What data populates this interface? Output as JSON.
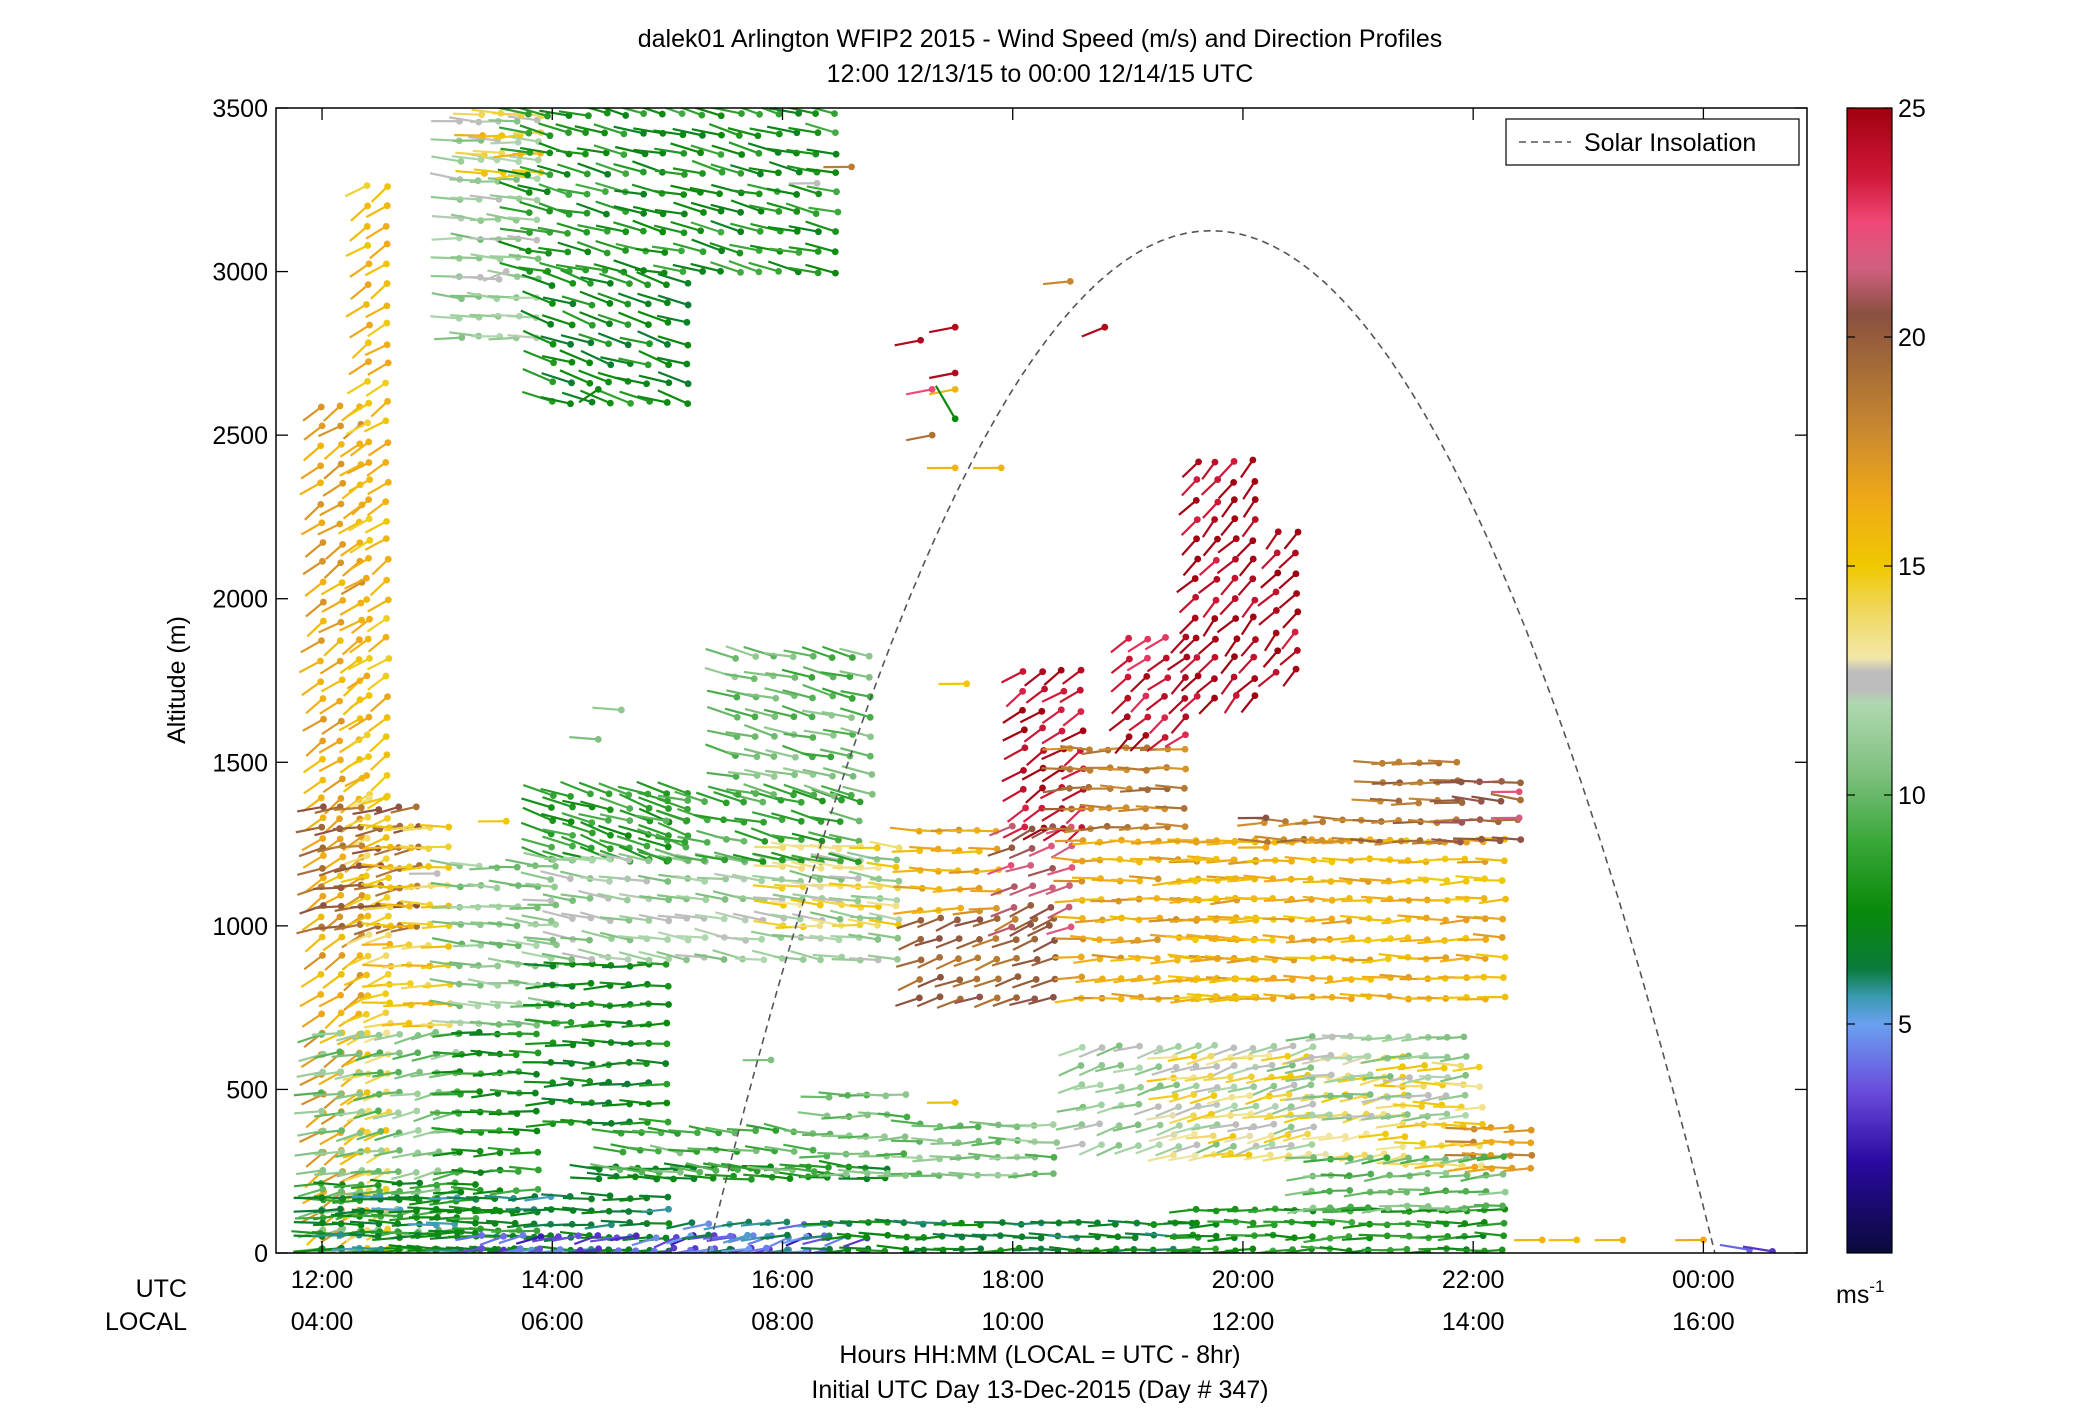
{
  "chart_data": {
    "type": "wind-barb-profile",
    "title": "dalek01 Arlington WFIP2 2015 - Wind Speed (m/s) and Direction Profiles",
    "subtitle": "12:00 12/13/15 to 00:00 12/14/15  UTC",
    "ylabel": "Altitude (m)",
    "xlabel": "Hours HH:MM  (LOCAL = UTC - 8hr)",
    "xlabel2": "Initial UTC Day 13-Dec-2015 (Day # 347)",
    "row_labels": {
      "utc": "UTC",
      "local": "LOCAL"
    },
    "xlim": [
      11.6,
      24.9
    ],
    "ylim": [
      0,
      3500
    ],
    "y_ticks": [
      "0",
      "500",
      "1000",
      "1500",
      "2000",
      "2500",
      "3000",
      "3500"
    ],
    "x_ticks_utc": [
      "12:00",
      "14:00",
      "16:00",
      "18:00",
      "20:00",
      "22:00",
      "00:00"
    ],
    "x_ticks_local": [
      "04:00",
      "06:00",
      "08:00",
      "10:00",
      "12:00",
      "14:00",
      "16:00"
    ],
    "legend": {
      "entries": [
        "Solar Insolation"
      ],
      "placement": "top-right"
    },
    "colorbar": {
      "range": [
        0,
        25
      ],
      "ticks": [
        "5",
        "10",
        "15",
        "20",
        "25"
      ],
      "unit_label": "ms",
      "unit_exp": "-1",
      "stops": [
        [
          0,
          "#0a0a3a"
        ],
        [
          2,
          "#2a0aa0"
        ],
        [
          3.5,
          "#6a4adc"
        ],
        [
          5,
          "#6aa0f0"
        ],
        [
          5.6,
          "#3a9ab0"
        ],
        [
          6.2,
          "#0a7a3a"
        ],
        [
          7.5,
          "#0a8a0a"
        ],
        [
          9,
          "#3aa83a"
        ],
        [
          10.5,
          "#80c080"
        ],
        [
          12,
          "#b0d8b0"
        ],
        [
          12.3,
          "#bdbdbd"
        ],
        [
          12.7,
          "#bdbdbd"
        ],
        [
          13,
          "#f2e8a8"
        ],
        [
          14,
          "#f0d860"
        ],
        [
          15,
          "#f0c800"
        ],
        [
          16.5,
          "#f0a818"
        ],
        [
          18,
          "#c88830"
        ],
        [
          19.5,
          "#a06838"
        ],
        [
          20.5,
          "#8a5040"
        ],
        [
          21.5,
          "#d06080"
        ],
        [
          22.5,
          "#f04878"
        ],
        [
          23.5,
          "#d01838"
        ],
        [
          25,
          "#a00010"
        ]
      ]
    },
    "solar_insolation": {
      "peak_time_utc": 19.8,
      "peak_altitude": 3125,
      "start_utc": 15.35,
      "end_utc": 24.1
    },
    "regions": [
      {
        "t0": 12.0,
        "t1": 12.4,
        "z0": 10,
        "z1": 2600,
        "dz": 60,
        "speed": 16.5,
        "dir": 220
      },
      {
        "t0": 12.4,
        "t1": 12.7,
        "z0": 1400,
        "z1": 3300,
        "dz": 60,
        "speed": 15.5,
        "dir": 220
      },
      {
        "t0": 12.4,
        "t1": 12.7,
        "z0": 10,
        "z1": 1400,
        "dz": 60,
        "speed": 14.5,
        "dir": 230
      },
      {
        "t0": 12.0,
        "t1": 12.9,
        "z0": 1000,
        "z1": 1360,
        "dz": 60,
        "speed": 19.5,
        "dir": 240
      },
      {
        "t0": 12.0,
        "t1": 13.2,
        "z0": 10,
        "z1": 700,
        "dz": 60,
        "speed": 10.5,
        "dir": 240
      },
      {
        "t0": 12.6,
        "t1": 13.2,
        "z0": 700,
        "z1": 1300,
        "dz": 60,
        "speed": 15.0,
        "dir": 250
      },
      {
        "t0": 12.0,
        "t1": 13.4,
        "z0": 10,
        "z1": 250,
        "dz": 50,
        "speed": 8.0,
        "dir": 250
      },
      {
        "t0": 13.2,
        "t1": 14.1,
        "z0": 700,
        "z1": 1200,
        "dz": 60,
        "speed": 11.0,
        "dir": 255
      },
      {
        "t0": 13.2,
        "t1": 14.0,
        "z0": 10,
        "z1": 700,
        "dz": 60,
        "speed": 8.0,
        "dir": 250
      },
      {
        "t0": 13.2,
        "t1": 14.0,
        "z0": 2800,
        "z1": 3480,
        "dz": 60,
        "speed": 11.5,
        "dir": 255
      },
      {
        "t0": 13.4,
        "t1": 14.0,
        "z0": 3300,
        "z1": 3480,
        "dz": 60,
        "speed": 15.0,
        "dir": 250
      },
      {
        "t0": 13.8,
        "t1": 16.6,
        "z0": 3000,
        "z1": 3480,
        "dz": 60,
        "speed": 8.0,
        "dir": 265
      },
      {
        "t0": 14.0,
        "t1": 15.2,
        "z0": 2600,
        "z1": 3000,
        "dz": 60,
        "speed": 7.5,
        "dir": 270
      },
      {
        "t0": 14.0,
        "t1": 15.2,
        "z0": 1200,
        "z1": 1400,
        "dz": 40,
        "speed": 8.5,
        "dir": 270
      },
      {
        "t0": 14.0,
        "t1": 15.0,
        "z0": 400,
        "z1": 900,
        "dz": 60,
        "speed": 7.5,
        "dir": 250
      },
      {
        "t0": 14.4,
        "t1": 16.9,
        "z0": 230,
        "z1": 280,
        "dz": 30,
        "speed": 7.5,
        "dir": 255
      },
      {
        "t0": 14.6,
        "t1": 16.4,
        "z0": 250,
        "z1": 380,
        "dz": 60,
        "speed": 9.5,
        "dir": 260
      },
      {
        "t0": 14.0,
        "t1": 17.0,
        "z0": 900,
        "z1": 1200,
        "dz": 60,
        "speed": 11.5,
        "dir": 260
      },
      {
        "t0": 15.0,
        "t1": 16.8,
        "z0": 1200,
        "z1": 1420,
        "dz": 60,
        "speed": 9.0,
        "dir": 265
      },
      {
        "t0": 16.0,
        "t1": 17.0,
        "z0": 1000,
        "z1": 1240,
        "dz": 60,
        "speed": 14.0,
        "dir": 255
      },
      {
        "t0": 15.6,
        "t1": 16.9,
        "z0": 1400,
        "z1": 1820,
        "dz": 60,
        "speed": 10.0,
        "dir": 265
      },
      {
        "t0": 17.2,
        "t1": 18.4,
        "z0": 780,
        "z1": 1050,
        "dz": 60,
        "speed": 19.5,
        "dir": 230
      },
      {
        "t0": 17.2,
        "t1": 18.0,
        "z0": 1050,
        "z1": 1300,
        "dz": 60,
        "speed": 16.5,
        "dir": 250
      },
      {
        "t0": 18.0,
        "t1": 18.5,
        "z0": 1000,
        "z1": 1300,
        "dz": 60,
        "speed": 21.0,
        "dir": 230
      },
      {
        "t0": 18.1,
        "t1": 18.6,
        "z0": 1300,
        "z1": 1820,
        "dz": 60,
        "speed": 24.0,
        "dir": 220
      },
      {
        "t0": 18.5,
        "t1": 19.6,
        "z0": 1300,
        "z1": 1560,
        "dz": 60,
        "speed": 18.5,
        "dir": 250
      },
      {
        "t0": 19.0,
        "t1": 19.6,
        "z0": 1580,
        "z1": 1900,
        "dz": 60,
        "speed": 24.0,
        "dir": 215
      },
      {
        "t0": 18.6,
        "t1": 20.2,
        "z0": 780,
        "z1": 1260,
        "dz": 60,
        "speed": 16.5,
        "dir": 250
      },
      {
        "t0": 19.6,
        "t1": 22.4,
        "z0": 780,
        "z1": 1260,
        "dz": 60,
        "speed": 16.0,
        "dir": 250
      },
      {
        "t0": 20.2,
        "t1": 21.1,
        "z0": 1260,
        "z1": 1360,
        "dz": 60,
        "speed": 18.5,
        "dir": 250
      },
      {
        "t0": 21.2,
        "t1": 21.9,
        "z0": 1260,
        "z1": 1500,
        "dz": 60,
        "speed": 19.0,
        "dir": 250
      },
      {
        "t0": 21.9,
        "t1": 22.4,
        "z0": 1260,
        "z1": 1480,
        "dz": 60,
        "speed": 20.0,
        "dir": 255
      },
      {
        "t0": 19.6,
        "t1": 20.2,
        "z0": 1700,
        "z1": 2450,
        "dz": 60,
        "speed": 24.5,
        "dir": 210
      },
      {
        "t0": 20.3,
        "t1": 20.6,
        "z0": 1780,
        "z1": 2200,
        "dz": 60,
        "speed": 24.5,
        "dir": 210
      },
      {
        "t0": 18.6,
        "t1": 20.6,
        "z0": 330,
        "z1": 680,
        "dz": 60,
        "speed": 11.5,
        "dir": 235
      },
      {
        "t0": 19.4,
        "t1": 21.4,
        "z0": 300,
        "z1": 600,
        "dz": 60,
        "speed": 14.0,
        "dir": 240
      },
      {
        "t0": 20.6,
        "t1": 22.0,
        "z0": 420,
        "z1": 680,
        "dz": 60,
        "speed": 11.5,
        "dir": 245
      },
      {
        "t0": 21.4,
        "t1": 22.1,
        "z0": 270,
        "z1": 600,
        "dz": 60,
        "speed": 14.5,
        "dir": 250
      },
      {
        "t0": 22.0,
        "t1": 22.6,
        "z0": 260,
        "z1": 380,
        "dz": 40,
        "speed": 17.5,
        "dir": 250
      },
      {
        "t0": 17.2,
        "t1": 18.4,
        "z0": 240,
        "z1": 400,
        "dz": 50,
        "speed": 10.5,
        "dir": 250
      },
      {
        "t0": 16.4,
        "t1": 17.2,
        "z0": 240,
        "z1": 480,
        "dz": 60,
        "speed": 10.0,
        "dir": 250
      },
      {
        "t0": 12.0,
        "t1": 15.0,
        "z0": 10,
        "z1": 170,
        "dz": 40,
        "speed": 6.5,
        "dir": 250
      },
      {
        "t0": 13.4,
        "t1": 16.8,
        "z0": 10,
        "z1": 80,
        "dz": 40,
        "speed": 3.5,
        "dir": 235
      },
      {
        "t0": 15.2,
        "t1": 16.4,
        "z0": 10,
        "z1": 90,
        "dz": 40,
        "speed": 5.2,
        "dir": 240
      },
      {
        "t0": 16.4,
        "t1": 19.6,
        "z0": 10,
        "z1": 120,
        "dz": 40,
        "speed": 7.0,
        "dir": 250
      },
      {
        "t0": 19.6,
        "t1": 22.4,
        "z0": 10,
        "z1": 140,
        "dz": 40,
        "speed": 8.0,
        "dir": 250
      },
      {
        "t0": 20.6,
        "t1": 22.4,
        "z0": 140,
        "z1": 300,
        "dz": 50,
        "speed": 10.0,
        "dir": 245
      }
    ],
    "isolated": [
      {
        "t": 17.2,
        "z": 2790,
        "speed": 24.5,
        "dir": 240
      },
      {
        "t": 17.5,
        "z": 2830,
        "speed": 24.5,
        "dir": 240
      },
      {
        "t": 17.5,
        "z": 2690,
        "speed": 24.5,
        "dir": 240
      },
      {
        "t": 17.3,
        "z": 2640,
        "speed": 22.5,
        "dir": 240
      },
      {
        "t": 17.5,
        "z": 2640,
        "speed": 16.0,
        "dir": 240
      },
      {
        "t": 17.5,
        "z": 2550,
        "speed": 7.5,
        "dir": 320
      },
      {
        "t": 17.3,
        "z": 2500,
        "speed": 19.0,
        "dir": 240
      },
      {
        "t": 17.5,
        "z": 2400,
        "speed": 16.0,
        "dir": 250
      },
      {
        "t": 17.9,
        "z": 2400,
        "speed": 16.0,
        "dir": 250
      },
      {
        "t": 18.5,
        "z": 2970,
        "speed": 18.0,
        "dir": 245
      },
      {
        "t": 18.8,
        "z": 2830,
        "speed": 24.5,
        "dir": 230
      },
      {
        "t": 17.6,
        "z": 1740,
        "speed": 15.0,
        "dir": 250
      },
      {
        "t": 20.2,
        "z": 1330,
        "speed": 20.5,
        "dir": 250
      },
      {
        "t": 20.2,
        "z": 1240,
        "speed": 16.5,
        "dir": 250
      },
      {
        "t": 22.4,
        "z": 1410,
        "speed": 22.0,
        "dir": 250
      },
      {
        "t": 22.4,
        "z": 1330,
        "speed": 21.5,
        "dir": 250
      },
      {
        "t": 13.6,
        "z": 1320,
        "speed": 15.0,
        "dir": 250
      },
      {
        "t": 13.0,
        "z": 1160,
        "speed": 12.4,
        "dir": 250
      },
      {
        "t": 17.5,
        "z": 460,
        "speed": 15.5,
        "dir": 250
      },
      {
        "t": 15.9,
        "z": 590,
        "speed": 10.5,
        "dir": 250
      },
      {
        "t": 14.4,
        "z": 1570,
        "speed": 10.5,
        "dir": 255
      },
      {
        "t": 14.6,
        "z": 1660,
        "speed": 11.0,
        "dir": 255
      },
      {
        "t": 22.6,
        "z": 40,
        "speed": 16.0,
        "dir": 250
      },
      {
        "t": 22.9,
        "z": 40,
        "speed": 15.5,
        "dir": 250
      },
      {
        "t": 23.3,
        "z": 40,
        "speed": 16.0,
        "dir": 250
      },
      {
        "t": 24.0,
        "z": 40,
        "speed": 16.5,
        "dir": 250
      },
      {
        "t": 24.4,
        "z": 10,
        "speed": 4.0,
        "dir": 260
      },
      {
        "t": 24.6,
        "z": 5,
        "speed": 3.0,
        "dir": 260
      },
      {
        "t": 16.6,
        "z": 3320,
        "speed": 18.5,
        "dir": 250
      },
      {
        "t": 16.3,
        "z": 3270,
        "speed": 12.3,
        "dir": 250
      },
      {
        "t": 14.4,
        "z": 2640,
        "speed": 7.5,
        "dir": 220
      },
      {
        "t": 13.6,
        "z": 3000,
        "speed": 12.5,
        "dir": 230
      }
    ]
  }
}
